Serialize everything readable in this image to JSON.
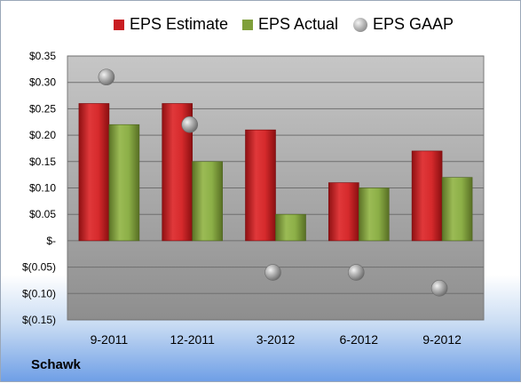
{
  "company": "Schawk",
  "colors": {
    "estimate": "#c91d22",
    "actual": "#7f9f3a",
    "gaap": "#a6a6a6"
  },
  "chart_data": {
    "type": "bar",
    "categories": [
      "9-2011",
      "12-2011",
      "3-2012",
      "6-2012",
      "9-2012"
    ],
    "series": [
      {
        "name": "EPS Estimate",
        "kind": "bar",
        "values": [
          0.26,
          0.26,
          0.21,
          0.11,
          0.17
        ]
      },
      {
        "name": "EPS Actual",
        "kind": "bar",
        "values": [
          0.22,
          0.15,
          0.05,
          0.1,
          0.12
        ]
      },
      {
        "name": "EPS GAAP",
        "kind": "scatter",
        "values": [
          0.31,
          0.22,
          -0.06,
          -0.06,
          -0.09
        ]
      }
    ],
    "ylim": [
      -0.15,
      0.35
    ],
    "yticks": [
      0.35,
      0.3,
      0.25,
      0.2,
      0.15,
      0.1,
      0.05,
      0,
      -0.05,
      -0.1,
      -0.15
    ],
    "ytick_labels": [
      "$0.35",
      "$0.30",
      "$0.25",
      "$0.20",
      "$0.15",
      "$0.10",
      "$0.05",
      "$-",
      "$(0.05)",
      "$(0.10)",
      "$(0.15)"
    ],
    "legend_position": "top",
    "grid": true
  }
}
